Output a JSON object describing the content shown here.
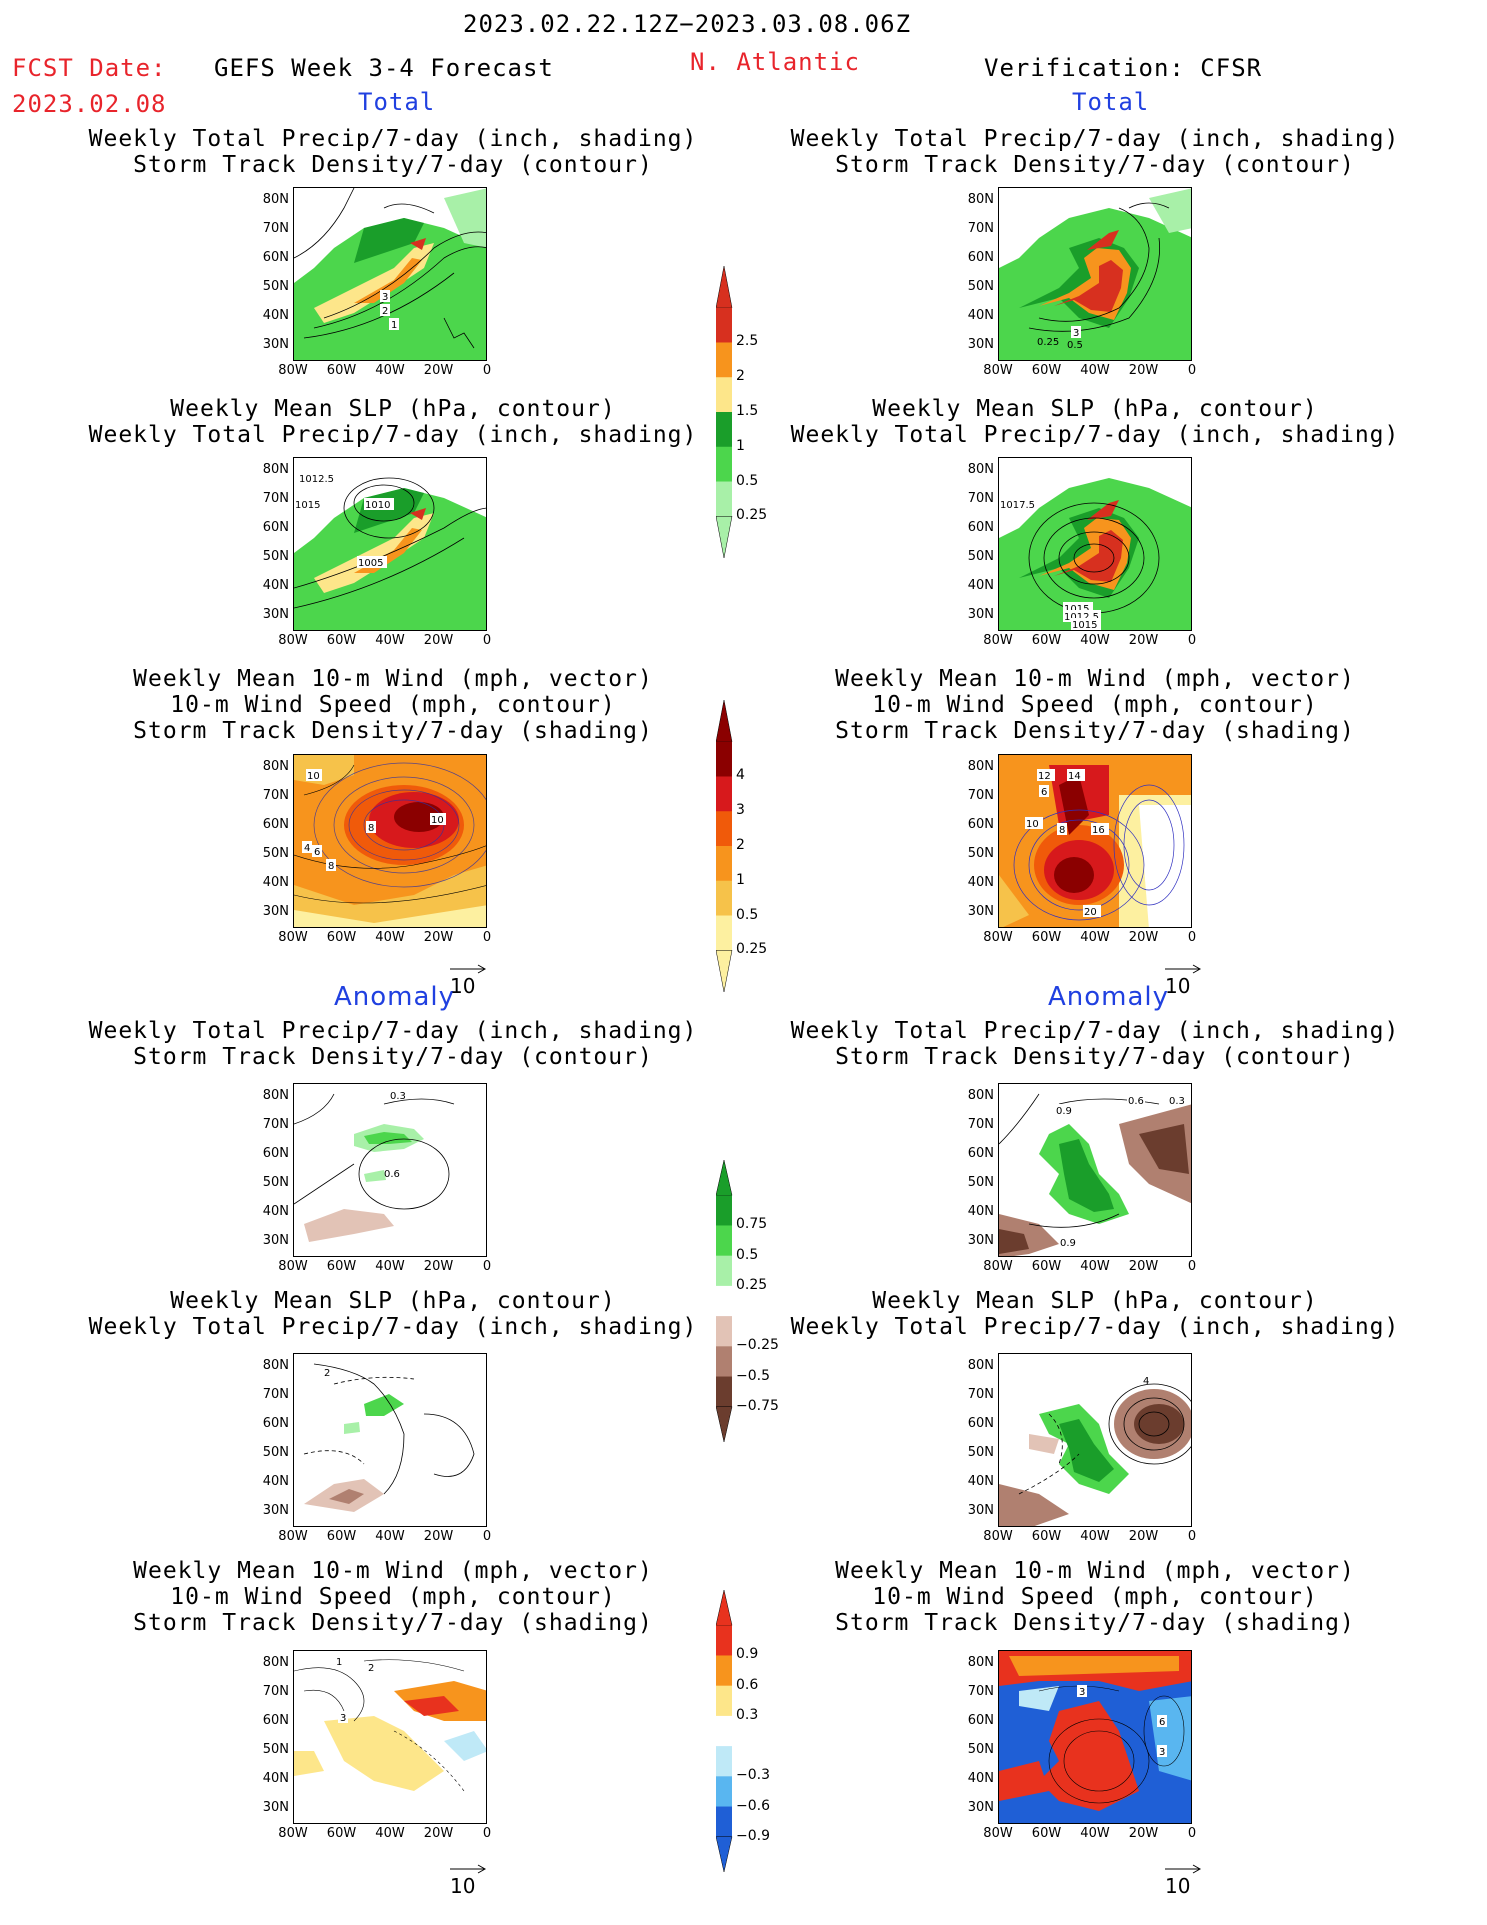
{
  "header": {
    "date_range": "2023.02.22.12Z−2023.03.08.06Z",
    "fcst_label": "FCST Date:",
    "fcst_date": "2023.02.08",
    "left_title": "GEFS Week 3-4 Forecast",
    "region": "N. Atlantic",
    "right_title": "Verification: CFSR",
    "total_label": "Total",
    "anomaly_label": "Anomaly"
  },
  "panel_titles": {
    "precip_storm": [
      "Weekly Total Precip/7-day (inch, shading)",
      "Storm Track Density/7-day (contour)"
    ],
    "slp_precip": [
      "Weekly Mean SLP (hPa, contour)",
      "Weekly Total Precip/7-day (inch, shading)"
    ],
    "wind_storm": [
      "Weekly Mean 10-m Wind (mph, vector)",
      "10-m Wind Speed (mph, contour)",
      "Storm Track Density/7-day (shading)"
    ]
  },
  "axes": {
    "y_ticks": [
      "80N",
      "70N",
      "60N",
      "50N",
      "40N",
      "30N"
    ],
    "x_ticks": [
      "80W",
      "60W",
      "40W",
      "20W",
      "0"
    ]
  },
  "colorbars": {
    "precip_total": {
      "labels": [
        "2.5",
        "2",
        "1.5",
        "1",
        "0.5",
        "0.25"
      ],
      "colors": [
        "#d7301f",
        "#f7941d",
        "#fde68a",
        "#1a9e2a",
        "#4cd64c",
        "#a8f0a8"
      ]
    },
    "storm_total": {
      "labels": [
        "4",
        "3",
        "2",
        "1",
        "0.5",
        "0.25"
      ],
      "colors": [
        "#8b0000",
        "#d7191c",
        "#f05a0a",
        "#f7941d",
        "#f6c24a",
        "#fdf0a0"
      ]
    },
    "precip_anom": {
      "labels": [
        "0.75",
        "0.5",
        "0.25",
        "−0.25",
        "−0.5",
        "−0.75"
      ],
      "colors": [
        "#1a9e2a",
        "#4cd64c",
        "#a8f0a8",
        "#ffffff",
        "#e2c3b6",
        "#b08070",
        "#6b3d2e"
      ]
    },
    "storm_anom": {
      "labels": [
        "0.9",
        "0.6",
        "0.3",
        "−0.3",
        "−0.6",
        "−0.9"
      ],
      "colors": [
        "#e8321e",
        "#f7941d",
        "#fde68a",
        "#ffffff",
        "#bfe9f7",
        "#59b6f0",
        "#1f5fd6"
      ]
    }
  },
  "vector_ref": "10",
  "map_contour_labels": {
    "p1": [
      "3",
      "2",
      "1"
    ],
    "p2": [
      "1012.5",
      "1015",
      "1010",
      "1005"
    ],
    "p3": [
      "10",
      "8",
      "10",
      "4",
      "6",
      "8"
    ],
    "q1": [
      "3",
      "0.25",
      "0.5"
    ],
    "q2": [
      "1017.5",
      "1015",
      "1012.5",
      "1015"
    ],
    "q3": [
      "12",
      "14",
      "6",
      "10",
      "8",
      "16",
      "20"
    ],
    "p4": [
      "0.3",
      "0.6"
    ],
    "p5": [
      "2"
    ],
    "p6": [
      "1",
      "2",
      "3"
    ],
    "q4": [
      "0.9",
      "0.6",
      "0.3",
      "0.9"
    ],
    "q5": [
      "4"
    ],
    "q6": [
      "3",
      "6",
      "3"
    ]
  }
}
